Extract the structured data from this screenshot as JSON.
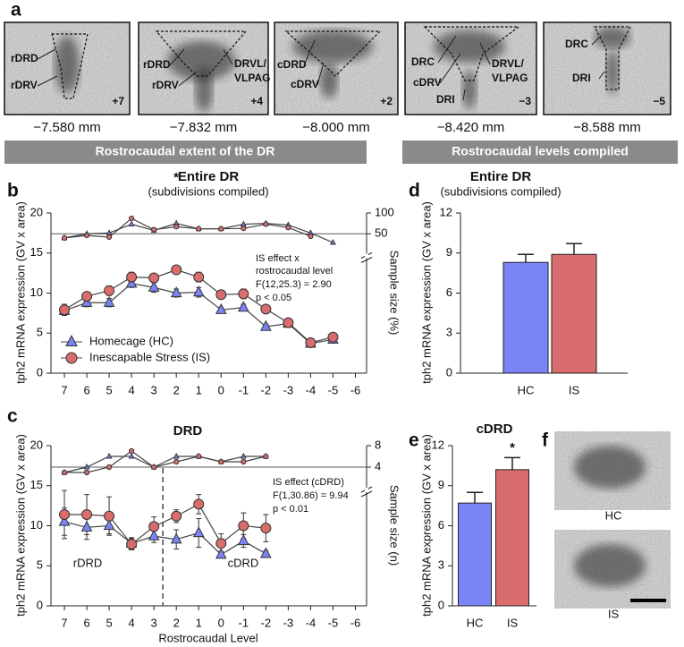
{
  "panel_labels": [
    "a",
    "b",
    "c",
    "d",
    "e",
    "f"
  ],
  "sections": [
    "Rostrocaudal extent of the DR",
    "Rostrocaudal levels compiled"
  ],
  "sections_images": [
    {
      "labels": [
        "rDRD",
        "rDRV"
      ],
      "level": "+7",
      "depth": "−7.580 mm"
    },
    {
      "labels": [
        "rDRD",
        "rDRV",
        "DRVL/",
        "VLPAG"
      ],
      "level": "+4",
      "depth": "−7.832 mm"
    },
    {
      "labels": [
        "cDRD",
        "cDRV"
      ],
      "level": "+2",
      "depth": "−8.000 mm"
    },
    {
      "labels": [
        "DRC",
        "cDRV",
        "DRI",
        "DRVL/",
        "VLPAG"
      ],
      "level": "−3",
      "depth": "−8.420 mm"
    },
    {
      "labels": [
        "DRC",
        "DRI"
      ],
      "level": "−5",
      "depth": "−8.588 mm"
    }
  ],
  "chart_data": [
    {
      "type": "line",
      "title": "Entire DR",
      "subtitle": "(subdivisions compiled)",
      "ylabel": "tph2 mRNA expression (GV x area)",
      "y2label": "Sample size (%)",
      "x": [
        7,
        6,
        5,
        4,
        3,
        2,
        1,
        0,
        -1,
        -2,
        -3,
        -4,
        -5
      ],
      "xlim": [
        7.6,
        -6.5
      ],
      "xticks": [
        7,
        6,
        5,
        4,
        3,
        2,
        1,
        0,
        -1,
        -2,
        -3,
        -4,
        -5,
        -6
      ],
      "ylim": [
        0,
        20
      ],
      "yticks": [
        0,
        5,
        10,
        15,
        20
      ],
      "y2lim": [
        0,
        100
      ],
      "y2ticks": [
        50,
        100
      ],
      "y2_reference": 50,
      "legend": "lower left",
      "series": [
        {
          "name": "Homecage (HC)",
          "color": "#7b84f4",
          "marker": "triangle",
          "values": [
            7.8,
            8.8,
            8.8,
            11.2,
            10.7,
            10.0,
            10.1,
            7.9,
            8.2,
            5.8,
            6.2,
            3.7,
            4.2
          ],
          "errors": [
            0.6,
            0.5,
            0.5,
            0.5,
            0.6,
            0.5,
            0.6,
            0.3,
            0.4,
            0.3,
            0.3,
            0.2,
            0.2
          ]
        },
        {
          "name": "Inescapable Stress (IS)",
          "color": "#d96c6c",
          "marker": "circle",
          "values": [
            7.9,
            9.6,
            10.3,
            12.0,
            11.9,
            12.9,
            12.0,
            9.8,
            9.9,
            8.0,
            6.3,
            3.8,
            4.5
          ],
          "errors": [
            0.7,
            0.5,
            0.6,
            0.6,
            0.5,
            0.5,
            0.6,
            0.5,
            0.6,
            0.3,
            0.3,
            0.2,
            0.2
          ]
        },
        {
          "axis": "y2",
          "color": "#7b84f4",
          "marker": "triangle",
          "values": [
            40,
            50,
            52,
            73,
            58,
            75,
            62,
            62,
            73,
            75,
            71,
            52,
            29
          ]
        },
        {
          "axis": "y2",
          "color": "#d96c6c",
          "marker": "circle",
          "values": [
            40,
            46,
            42,
            87,
            60,
            67,
            62,
            62,
            63,
            73,
            65,
            44,
            null
          ]
        }
      ],
      "annotations": [
        "*",
        "IS effect x",
        "rostrocaudal level",
        "F(12,25.3) = 2.90",
        "p < 0.05"
      ]
    },
    {
      "type": "line",
      "title": "DRD",
      "ylabel": "tph2 mRNA expression (GV x area)",
      "y2label": "Sample size (n)",
      "xlabel": "Rostrocaudal Level",
      "x": [
        7,
        6,
        5,
        4,
        3,
        2,
        1,
        0,
        -1,
        -2
      ],
      "xlim": [
        7.6,
        -6.5
      ],
      "xticks": [
        7,
        6,
        5,
        4,
        3,
        2,
        1,
        0,
        -1,
        -2,
        -3,
        -4,
        -5,
        -6
      ],
      "ylim": [
        0,
        20
      ],
      "yticks": [
        0,
        5,
        10,
        15,
        20
      ],
      "y2lim": [
        0,
        8
      ],
      "y2ticks": [
        4,
        8
      ],
      "y2_reference": 4,
      "divider": 2.6,
      "series": [
        {
          "name": "Homecage (HC)",
          "color": "#7b84f4",
          "marker": "triangle",
          "values": [
            10.5,
            9.8,
            10.0,
            7.8,
            8.7,
            8.3,
            9.1,
            6.4,
            8.1,
            6.5
          ],
          "errors": [
            1.7,
            1.5,
            1.0,
            0.7,
            0.8,
            1.2,
            1.8,
            0.4,
            0.8,
            0.4
          ]
        },
        {
          "name": "Inescapable Stress (IS)",
          "color": "#d96c6c",
          "marker": "circle",
          "values": [
            11.4,
            11.4,
            11.2,
            7.7,
            9.9,
            11.2,
            12.7,
            7.8,
            10.0,
            9.7
          ],
          "errors": [
            3.0,
            2.5,
            2.4,
            0.7,
            1.2,
            0.8,
            1.2,
            1.2,
            1.6,
            1.7
          ]
        },
        {
          "axis": "y2",
          "color": "#7b84f4",
          "marker": "triangle",
          "values": [
            3,
            4,
            6,
            6,
            4,
            6,
            6,
            5,
            6,
            6
          ]
        },
        {
          "axis": "y2",
          "color": "#d96c6c",
          "marker": "circle",
          "values": [
            3,
            3,
            4,
            7,
            4,
            5,
            6,
            5,
            5,
            6
          ]
        }
      ],
      "annotations": [
        "IS effect (cDRD)",
        "F(1,30.86) = 9.94",
        "p < 0.01"
      ],
      "region_labels": [
        "rDRD",
        "cDRD"
      ]
    },
    {
      "type": "bar",
      "title": "Entire DR",
      "subtitle": "(subdivisions compiled)",
      "ylabel": "tph2 mRNA expression (GV x area)",
      "categories": [
        "HC",
        "IS"
      ],
      "values": [
        8.3,
        8.9
      ],
      "errors": [
        0.6,
        0.8
      ],
      "colors": [
        "#7b84f4",
        "#d96c6c"
      ],
      "ylim": [
        0,
        12
      ],
      "yticks": [
        0,
        3,
        6,
        9,
        12
      ]
    },
    {
      "type": "bar",
      "title": "cDRD",
      "ylabel": "tph2 mRNA expression (GV x area)",
      "categories": [
        "HC",
        "IS"
      ],
      "values": [
        7.7,
        10.2
      ],
      "errors": [
        0.8,
        0.9
      ],
      "colors": [
        "#7b84f4",
        "#d96c6c"
      ],
      "ylim": [
        0,
        12
      ],
      "yticks": [
        0,
        3,
        6,
        9,
        12
      ],
      "annotations": [
        "*"
      ]
    }
  ],
  "micrographs": [
    "HC",
    "IS"
  ]
}
